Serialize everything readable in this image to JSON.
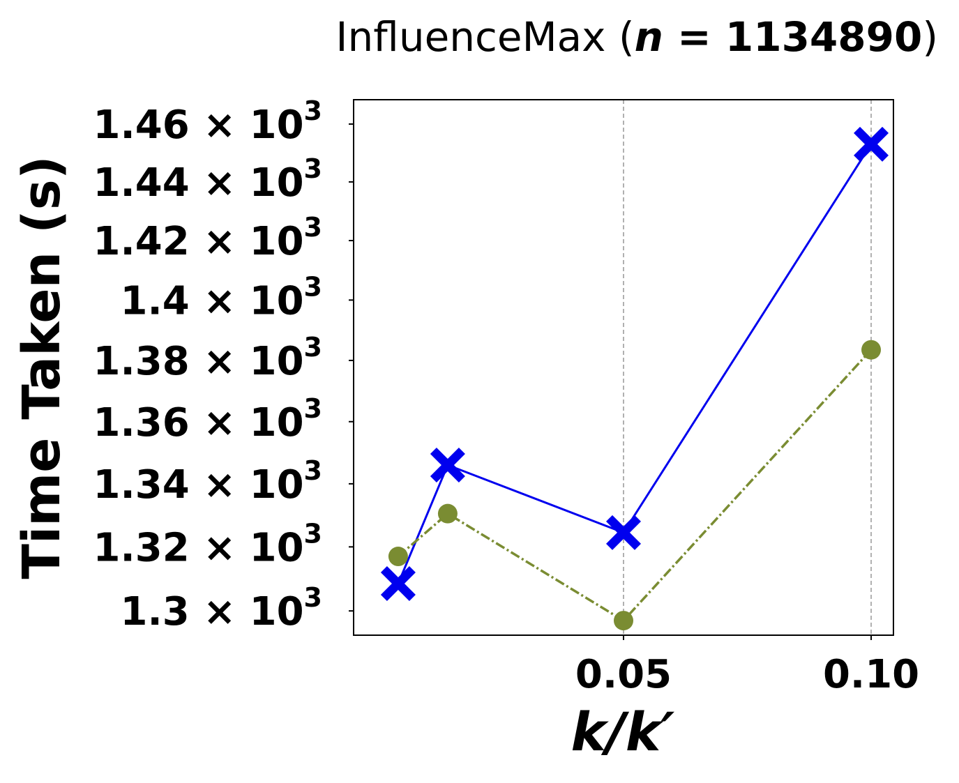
{
  "chart_data": {
    "type": "line",
    "title": {
      "prefix": "InfluenceMax (",
      "var": "n",
      "eq": " = 1134890",
      "suffix": ")"
    },
    "xlabel": "k/k′",
    "ylabel": "Time Taken (s)",
    "xlim": [
      -0.0045,
      0.1045
    ],
    "ylim": [
      1292.5,
      1468.5
    ],
    "y_scale": "log",
    "xticks": [
      {
        "value": 0.05,
        "label": "0.05"
      },
      {
        "value": 0.1,
        "label": "0.10"
      }
    ],
    "yticks": [
      {
        "value": 1300,
        "mantissa": "1.3",
        "base": "× 10",
        "exp": "3"
      },
      {
        "value": 1320,
        "mantissa": "1.32",
        "base": "× 10",
        "exp": "3"
      },
      {
        "value": 1340,
        "mantissa": "1.34",
        "base": "× 10",
        "exp": "3"
      },
      {
        "value": 1360,
        "mantissa": "1.36",
        "base": "× 10",
        "exp": "3"
      },
      {
        "value": 1380,
        "mantissa": "1.38",
        "base": "× 10",
        "exp": "3"
      },
      {
        "value": 1400,
        "mantissa": "1.4",
        "base": "× 10",
        "exp": "3"
      },
      {
        "value": 1420,
        "mantissa": "1.42",
        "base": "× 10",
        "exp": "3"
      },
      {
        "value": 1440,
        "mantissa": "1.44",
        "base": "× 10",
        "exp": "3"
      },
      {
        "value": 1460,
        "mantissa": "1.46",
        "base": "× 10",
        "exp": "3"
      }
    ],
    "grid": {
      "x": true,
      "y": false,
      "style": "dashed"
    },
    "series": [
      {
        "color": "#0000ee",
        "marker": "X",
        "line": "solid",
        "x": [
          0.0045,
          0.0145,
          0.05,
          0.1
        ],
        "y": [
          1308.5,
          1346.0,
          1324.5,
          1453.0
        ]
      },
      {
        "color": "#7a8c32",
        "marker": "circle",
        "line": "dashdot",
        "x": [
          0.0045,
          0.0145,
          0.05,
          0.1
        ],
        "y": [
          1317.0,
          1330.5,
          1297.0,
          1383.5
        ]
      }
    ]
  }
}
